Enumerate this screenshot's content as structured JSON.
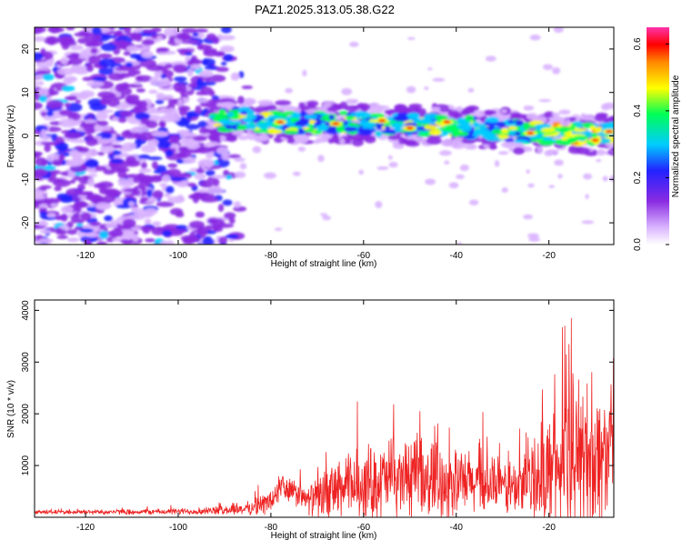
{
  "chart_data": [
    {
      "type": "heatmap",
      "title": "PAZ1.2025.313.05.38.G22",
      "xlabel": "Height of straight line (km)",
      "ylabel": "Frequency (Hz)",
      "xlim": [
        -131,
        -6
      ],
      "ylim": [
        -25,
        25
      ],
      "xticks": [
        -120,
        -100,
        -80,
        -60,
        -40,
        -20
      ],
      "yticks": [
        -20,
        -10,
        0,
        10,
        20
      ],
      "colorbar": {
        "label": "Normalized spectral amplitude",
        "range": [
          0.0,
          0.65
        ],
        "ticks": [
          0.0,
          0.2,
          0.4,
          0.6
        ],
        "colormap": [
          "#ffffff",
          "#d9b3ff",
          "#8a2be2",
          "#2222ff",
          "#00ccff",
          "#00ff55",
          "#ffff00",
          "#ff8800",
          "#ff0000",
          "#ff33aa"
        ]
      },
      "ridge": {
        "x": [
          -92,
          -86,
          -80,
          -74,
          -68,
          -62,
          -56,
          -50,
          -44,
          -38,
          -32,
          -26,
          -20,
          -14,
          -8
        ],
        "freq": [
          3.5,
          4,
          3.2,
          3,
          3,
          3,
          2.5,
          2.5,
          2.5,
          2,
          1.5,
          1,
          0.5,
          0.5,
          0.5
        ]
      }
    },
    {
      "type": "line",
      "xlabel": "Height of straight line (km)",
      "ylabel": "SNR (10 * v/v)",
      "xlim": [
        -131,
        -6
      ],
      "ylim": [
        0,
        4200
      ],
      "xticks": [
        -120,
        -100,
        -80,
        -60,
        -40,
        -20
      ],
      "yticks": [
        1000,
        2000,
        3000,
        4000
      ],
      "line_color": "#ee2222",
      "envelope": {
        "x": [
          -131,
          -110,
          -95,
          -90,
          -85,
          -80,
          -78,
          -75,
          -72,
          -70,
          -65,
          -60,
          -55,
          -50,
          -45,
          -40,
          -35,
          -30,
          -27,
          -25,
          -20,
          -18,
          -15,
          -13,
          -11,
          -9,
          -7,
          -6
        ],
        "mean": [
          100,
          100,
          110,
          130,
          160,
          280,
          550,
          450,
          300,
          350,
          500,
          600,
          650,
          700,
          650,
          600,
          600,
          550,
          500,
          600,
          800,
          900,
          1000,
          1000,
          1100,
          1000,
          1200,
          1500
        ],
        "amplitude": [
          50,
          60,
          80,
          100,
          150,
          300,
          400,
          300,
          300,
          500,
          700,
          850,
          900,
          900,
          900,
          800,
          700,
          600,
          700,
          800,
          1300,
          1400,
          1600,
          1800,
          2000,
          1700,
          1300,
          1200
        ]
      }
    }
  ]
}
